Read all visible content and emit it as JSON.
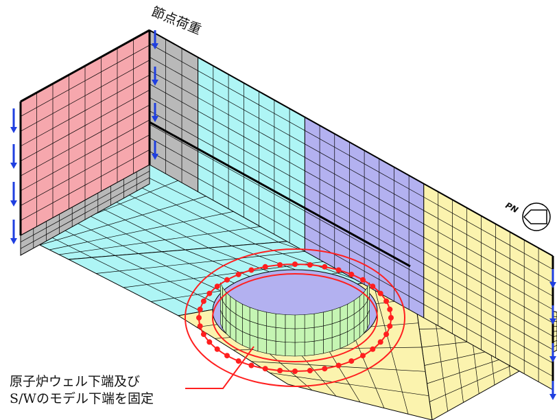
{
  "labels": {
    "nodal_load": "節点荷重",
    "fixed_line1": "原子炉ウェル下端及び",
    "fixed_line2": "S/Wのモデル下端を固定",
    "pn": "PN"
  },
  "icons": {
    "load_arrow": "down-arrow-icon",
    "north": "plant-north-icon"
  },
  "colors": {
    "pink": "#f6a7ad",
    "gray": "#b9b9b9",
    "cyan": "#aef5f5",
    "purple": "#b3b1f0",
    "yellow": "#fbf3ae",
    "green": "#c5f5b3",
    "arrow": "#1f3fe0",
    "ring": "#ff1f1f",
    "edge": "#000000"
  }
}
